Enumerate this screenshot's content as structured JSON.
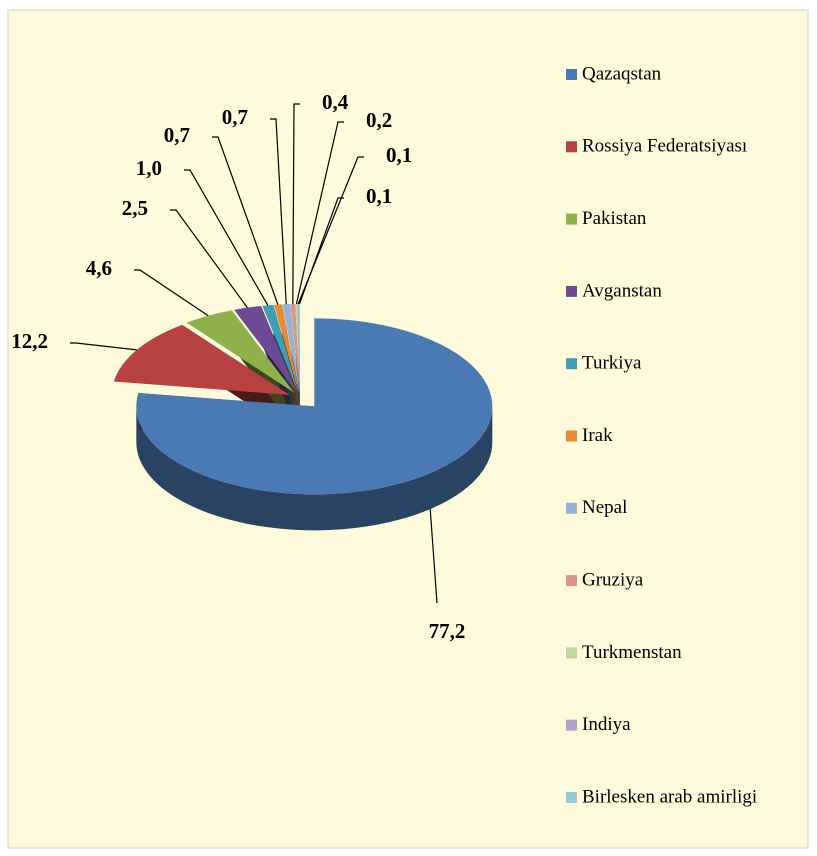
{
  "chart_data": {
    "type": "pie",
    "categories": [
      "Qazaqstan",
      "Rossiya Federatsiyası",
      "Pakistan",
      "Avganstan",
      "Turkiya",
      "Irak",
      "Nepal",
      "Gruziya",
      "Turkmenstan",
      "Indiya",
      "Birlesken arab amirligi"
    ],
    "values": [
      77.2,
      12.2,
      4.6,
      2.5,
      1.0,
      0.7,
      0.7,
      0.4,
      0.2,
      0.1,
      0.1
    ],
    "value_labels": [
      "77,2",
      "12,2",
      "4,6",
      "2,5",
      "1,0",
      "0,7",
      "0,7",
      "0,4",
      "0,2",
      "0,1",
      "0,1"
    ],
    "colors": [
      "#4a7ab4",
      "#b8423f",
      "#8eb04a",
      "#6f4a94",
      "#3ea0b8",
      "#e88a32",
      "#95b3d7",
      "#d99594",
      "#c3d69b",
      "#b3a2c7",
      "#93cddd"
    ],
    "legend": "right"
  }
}
